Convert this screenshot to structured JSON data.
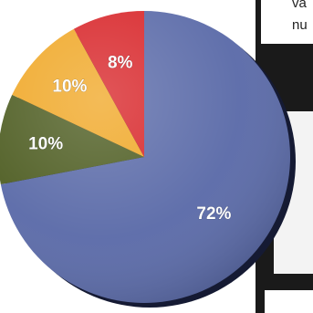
{
  "side_text": {
    "line1": "va",
    "line2": "nu"
  },
  "chart_data": {
    "type": "pie",
    "title": "",
    "slices": [
      {
        "label": "72%",
        "value": 72,
        "color": "#5a6aa8"
      },
      {
        "label": "10%",
        "value": 10,
        "color": "#4e5d22"
      },
      {
        "label": "10%",
        "value": 10,
        "color": "#f0a828"
      },
      {
        "label": "8%",
        "value": 8,
        "color": "#d8262a"
      }
    ],
    "start": "top",
    "direction": "clockwise",
    "legend": "none"
  }
}
